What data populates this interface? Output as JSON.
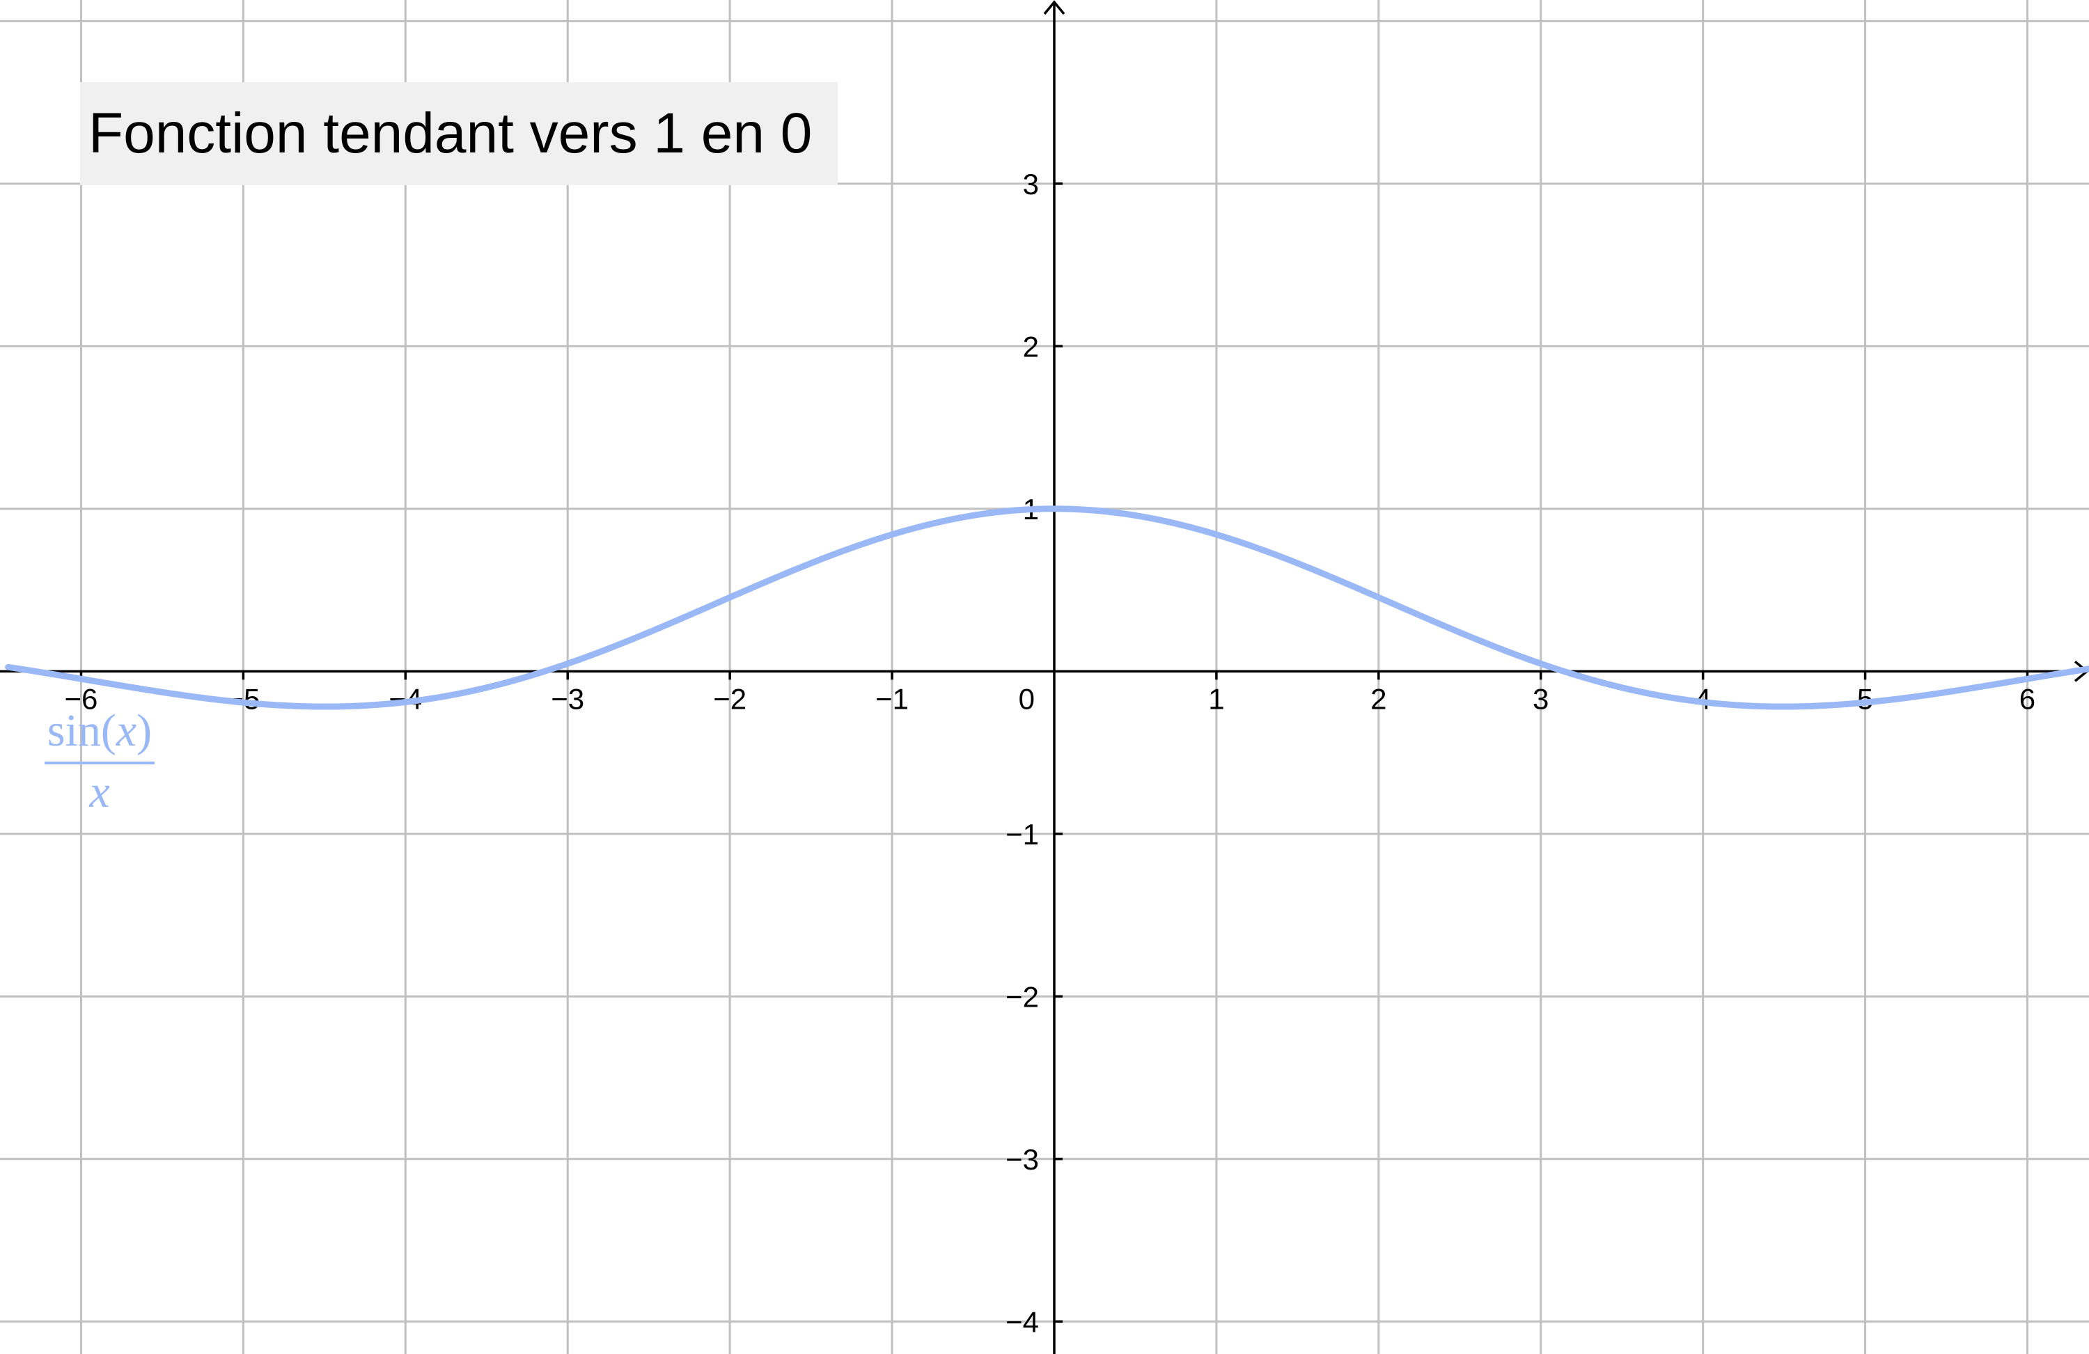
{
  "chart_data": {
    "type": "line",
    "title": "Fonction tendant vers 1 en 0",
    "function": {
      "numerator_fn": "sin",
      "numerator_paren_open": "(",
      "numerator_var": "x",
      "numerator_paren_close": ")",
      "denominator": "x",
      "color": "#99b8f5",
      "sample_x_range": [
        -6.45,
        6.45
      ],
      "samples": [
        {
          "x": -6,
          "y": -0.047
        },
        {
          "x": -5,
          "y": -0.192
        },
        {
          "x": -4.49,
          "y": -0.217
        },
        {
          "x": -4,
          "y": -0.189
        },
        {
          "x": -3,
          "y": 0.047
        },
        {
          "x": -2,
          "y": 0.455
        },
        {
          "x": -1,
          "y": 0.841
        },
        {
          "x": 0,
          "y": 1
        },
        {
          "x": 1,
          "y": 0.841
        },
        {
          "x": 2,
          "y": 0.455
        },
        {
          "x": 3,
          "y": 0.047
        },
        {
          "x": 4,
          "y": -0.189
        },
        {
          "x": 4.49,
          "y": -0.217
        },
        {
          "x": 5,
          "y": -0.192
        },
        {
          "x": 6,
          "y": -0.047
        }
      ]
    },
    "xlim": [
      -6.5,
      6.38
    ],
    "ylim": [
      -4.2,
      4.13
    ],
    "grid": true,
    "x_ticks": [
      {
        "value": -6,
        "label": "−6"
      },
      {
        "value": -5,
        "label": "−5"
      },
      {
        "value": -4,
        "label": "−4"
      },
      {
        "value": -3,
        "label": "−3"
      },
      {
        "value": -2,
        "label": "−2"
      },
      {
        "value": -1,
        "label": "−1"
      },
      {
        "value": 1,
        "label": "1"
      },
      {
        "value": 2,
        "label": "2"
      },
      {
        "value": 3,
        "label": "3"
      },
      {
        "value": 4,
        "label": "4"
      },
      {
        "value": 5,
        "label": "5"
      },
      {
        "value": 6,
        "label": "6"
      }
    ],
    "y_ticks": [
      {
        "value": 3,
        "label": "3"
      },
      {
        "value": 2,
        "label": "2"
      },
      {
        "value": 1,
        "label": "1"
      },
      {
        "value": -1,
        "label": "−1"
      },
      {
        "value": -2,
        "label": "−2"
      },
      {
        "value": -3,
        "label": "−3"
      },
      {
        "value": -4,
        "label": "−4"
      }
    ],
    "origin_label": "0",
    "colors": {
      "grid": "#c0c0c0",
      "axis": "#000000",
      "curve": "#99b8f5",
      "title_background": "#f0f0f0"
    }
  }
}
